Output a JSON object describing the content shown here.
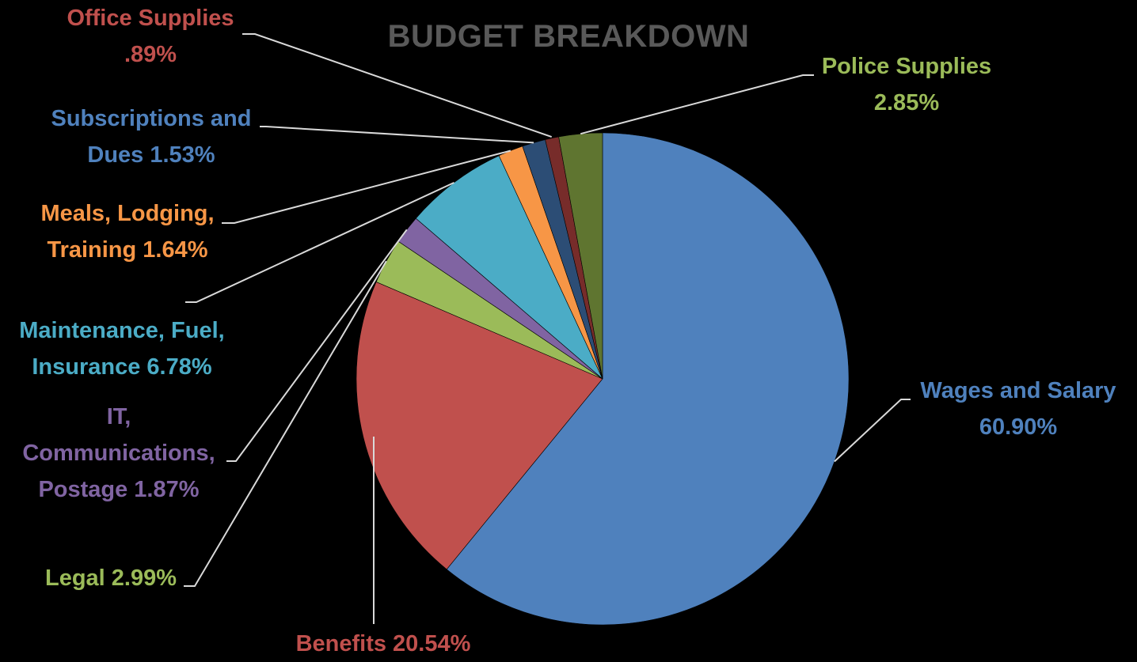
{
  "chart_data": {
    "type": "pie",
    "title": "BUDGET BREAKDOWN",
    "start_angle_deg": 0,
    "direction": "clockwise",
    "slices": [
      {
        "key": "wages",
        "label": "Wages and Salary",
        "value_text": "60.90%",
        "value": 60.9,
        "color": "#4F81BD"
      },
      {
        "key": "benefits",
        "label": "Benefits",
        "value_text": "20.54%",
        "value": 20.54,
        "color": "#C0504D"
      },
      {
        "key": "legal",
        "label": "Legal",
        "value_text": "2.99%",
        "value": 2.99,
        "color": "#9BBB59"
      },
      {
        "key": "it",
        "label": "IT, Communications, Postage",
        "value_text": "1.87%",
        "value": 1.87,
        "color": "#8064A2"
      },
      {
        "key": "maintenance",
        "label": "Maintenance, Fuel, Insurance",
        "value_text": "6.78%",
        "value": 6.78,
        "color": "#4BACC6"
      },
      {
        "key": "meals",
        "label": "Meals, Lodging, Training",
        "value_text": "1.64%",
        "value": 1.64,
        "color": "#F79646"
      },
      {
        "key": "subscriptions",
        "label": "Subscriptions and Dues",
        "value_text": "1.53%",
        "value": 1.53,
        "color": "#2C4D75"
      },
      {
        "key": "office",
        "label": "Office Supplies",
        "value_text": ".89%",
        "value": 0.89,
        "color": "#772C2A"
      },
      {
        "key": "police",
        "label": "Police Supplies",
        "value_text": "2.85%",
        "value": 2.85,
        "color": "#5F7530"
      }
    ],
    "data_labels": {
      "wages": {
        "line1": "Wages and Salary",
        "line2": "60.90%",
        "color": "#4F81BD"
      },
      "benefits": {
        "line1": "Benefits 20.54%",
        "color": "#C0504D"
      },
      "legal": {
        "line1": "Legal 2.99%",
        "color": "#9BBB59"
      },
      "it": {
        "line1": "IT,",
        "line2": "Communications,",
        "line3": "Postage 1.87%",
        "color": "#8064A2"
      },
      "maintenance": {
        "line1": "Maintenance, Fuel,",
        "line2": "Insurance 6.78%",
        "color": "#4BACC6"
      },
      "meals": {
        "line1": "Meals, Lodging,",
        "line2": "Training 1.64%",
        "color": "#F79646"
      },
      "subscriptions": {
        "line1": "Subscriptions and",
        "line2": "Dues 1.53%",
        "color": "#4F81BD"
      },
      "office": {
        "line1": "Office Supplies",
        "line2": ".89%",
        "color": "#C0504D"
      },
      "police": {
        "line1": "Police Supplies",
        "line2": "2.85%",
        "color": "#9BBB59"
      }
    },
    "leader_line_color": "#D9D9D9",
    "legend": "none"
  }
}
